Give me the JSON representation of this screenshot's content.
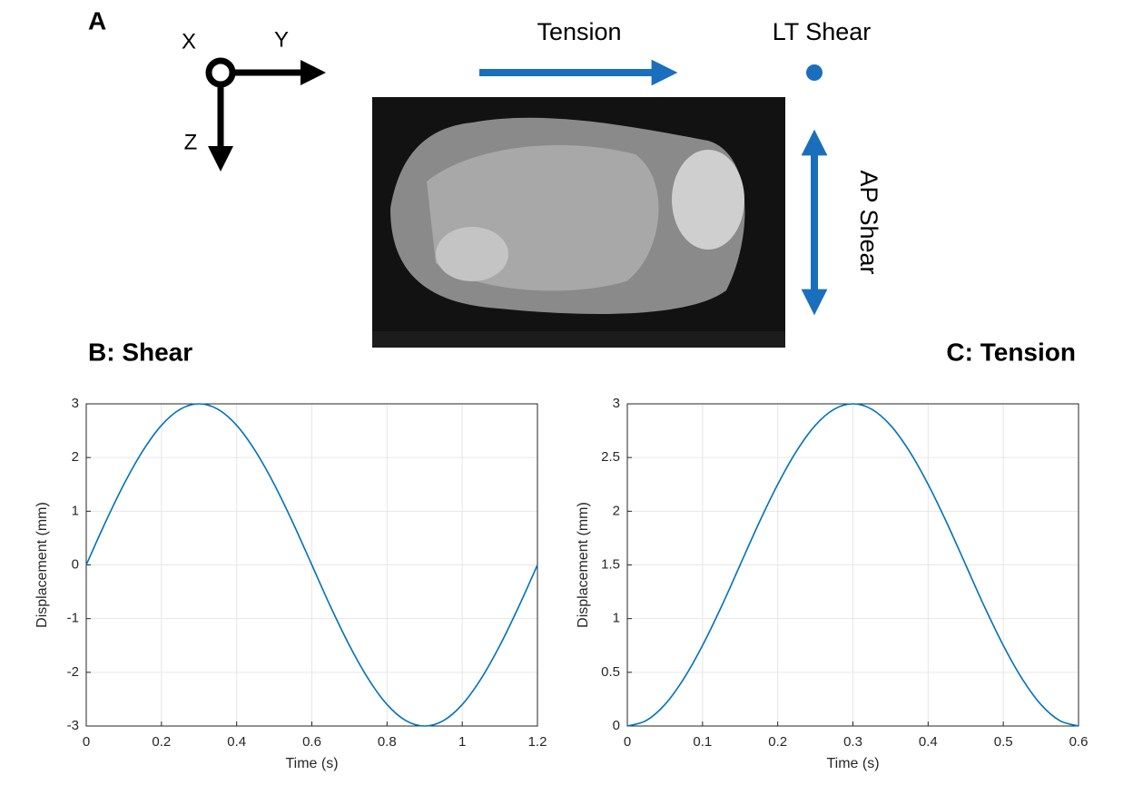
{
  "figure": {
    "panel_label": "A",
    "axes": {
      "x": "X",
      "y": "Y",
      "z": "Z"
    },
    "tension": "Tension",
    "lt_shear": "LT Shear",
    "ap_shear": "AP Shear"
  },
  "chart_data": [
    {
      "type": "line",
      "title": "B: Shear",
      "xlabel": "Time (s)",
      "ylabel": "Displacement (mm)",
      "color": "#0072bd",
      "grid": true,
      "x": [
        0,
        0.05,
        0.1,
        0.15,
        0.2,
        0.25,
        0.3,
        0.35,
        0.4,
        0.45,
        0.5,
        0.55,
        0.6,
        0.65,
        0.7,
        0.75,
        0.8,
        0.85,
        0.9,
        0.95,
        1,
        1.05,
        1.1,
        1.15,
        1.2
      ],
      "values": [
        0,
        0.78,
        1.5,
        2.12,
        2.6,
        2.9,
        3,
        2.9,
        2.6,
        2.12,
        1.5,
        0.78,
        0,
        -0.78,
        -1.5,
        -2.12,
        -2.6,
        -2.9,
        -3,
        -2.9,
        -2.6,
        -2.12,
        -1.5,
        -0.78,
        0
      ],
      "xlim": [
        0,
        1.2
      ],
      "xticks": [
        0,
        0.2,
        0.4,
        0.6,
        0.8,
        1,
        1.2
      ],
      "ylim": [
        -3,
        3
      ],
      "yticks": [
        -3,
        -2,
        -1,
        0,
        1,
        2,
        3
      ]
    },
    {
      "type": "line",
      "title": "C: Tension",
      "xlabel": "Time (s)",
      "ylabel": "Displacement (mm)",
      "color": "#0072bd",
      "grid": true,
      "x": [
        0,
        0.025,
        0.05,
        0.075,
        0.1,
        0.125,
        0.15,
        0.175,
        0.2,
        0.225,
        0.25,
        0.275,
        0.3,
        0.325,
        0.35,
        0.375,
        0.4,
        0.425,
        0.45,
        0.475,
        0.5,
        0.525,
        0.55,
        0.575,
        0.6
      ],
      "values": [
        0,
        0.05,
        0.2,
        0.44,
        0.75,
        1.11,
        1.5,
        1.89,
        2.25,
        2.56,
        2.8,
        2.95,
        3,
        2.95,
        2.8,
        2.56,
        2.25,
        1.89,
        1.5,
        1.11,
        0.75,
        0.44,
        0.2,
        0.05,
        0
      ],
      "xlim": [
        0,
        0.6
      ],
      "xticks": [
        0,
        0.1,
        0.2,
        0.3,
        0.4,
        0.5,
        0.6
      ],
      "ylim": [
        0,
        3
      ],
      "yticks": [
        0,
        0.5,
        1,
        1.5,
        2,
        2.5,
        3
      ]
    }
  ]
}
